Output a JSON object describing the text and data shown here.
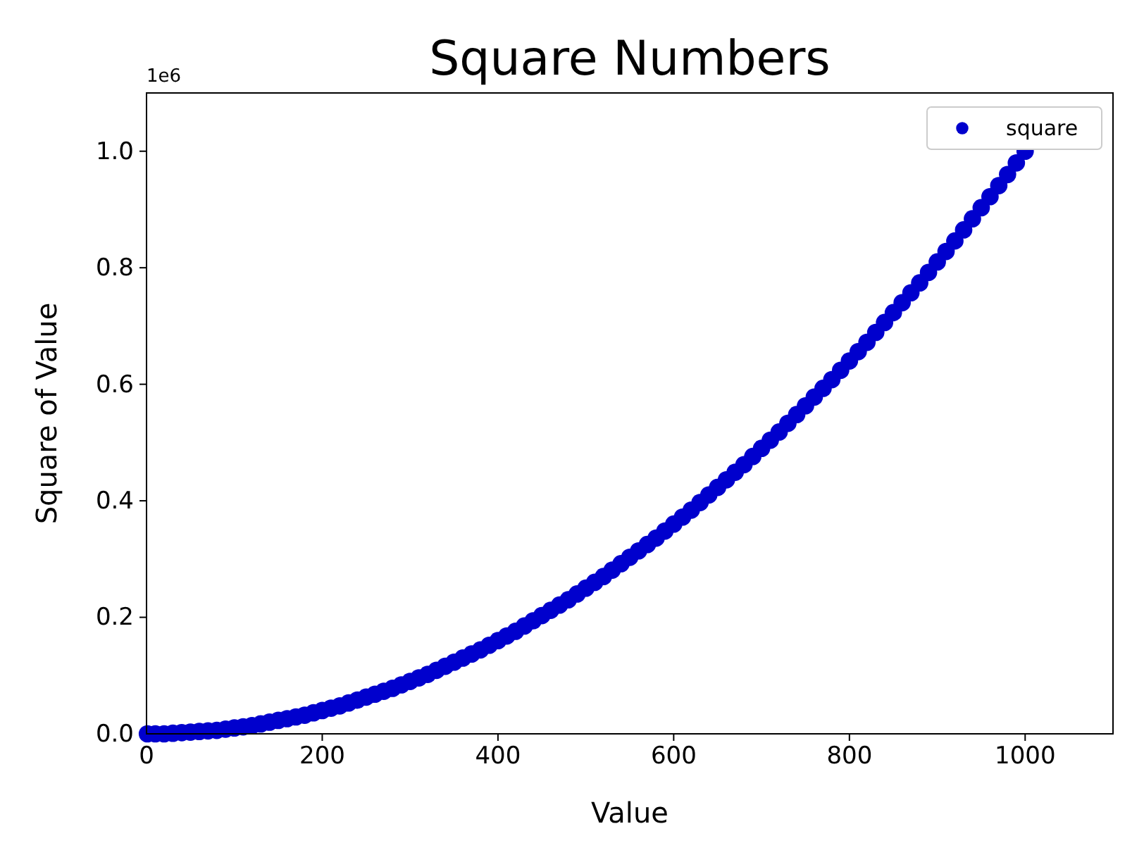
{
  "chart_data": {
    "type": "scatter",
    "title": "Square Numbers",
    "xlabel": "Value",
    "ylabel": "Square of Value",
    "annotations": [
      "1e6"
    ],
    "x": [
      1,
      10,
      20,
      30,
      40,
      50,
      60,
      70,
      80,
      90,
      100,
      110,
      120,
      130,
      140,
      150,
      160,
      170,
      180,
      190,
      200,
      210,
      220,
      230,
      240,
      250,
      260,
      270,
      280,
      290,
      300,
      310,
      320,
      330,
      340,
      350,
      360,
      370,
      380,
      390,
      400,
      410,
      420,
      430,
      440,
      450,
      460,
      470,
      480,
      490,
      500,
      510,
      520,
      530,
      540,
      550,
      560,
      570,
      580,
      590,
      600,
      610,
      620,
      630,
      640,
      650,
      660,
      670,
      680,
      690,
      700,
      710,
      720,
      730,
      740,
      750,
      760,
      770,
      780,
      790,
      800,
      810,
      820,
      830,
      840,
      850,
      860,
      870,
      880,
      890,
      900,
      910,
      920,
      930,
      940,
      950,
      960,
      970,
      980,
      990,
      1000
    ],
    "series": [
      {
        "name": "square",
        "color": "#0000cd",
        "values": [
          0,
          0,
          0,
          0.001,
          0.002,
          0.003,
          0.004,
          0.005,
          0.006,
          0.008,
          0.01,
          0.012,
          0.014,
          0.017,
          0.02,
          0.023,
          0.026,
          0.029,
          0.032,
          0.036,
          0.04,
          0.044,
          0.048,
          0.053,
          0.058,
          0.063,
          0.068,
          0.073,
          0.078,
          0.084,
          0.09,
          0.096,
          0.102,
          0.109,
          0.116,
          0.123,
          0.13,
          0.137,
          0.144,
          0.152,
          0.16,
          0.168,
          0.176,
          0.185,
          0.194,
          0.203,
          0.212,
          0.221,
          0.23,
          0.24,
          0.25,
          0.26,
          0.27,
          0.281,
          0.292,
          0.303,
          0.314,
          0.325,
          0.336,
          0.348,
          0.36,
          0.372,
          0.384,
          0.397,
          0.41,
          0.423,
          0.436,
          0.449,
          0.462,
          0.476,
          0.49,
          0.504,
          0.518,
          0.533,
          0.548,
          0.563,
          0.578,
          0.593,
          0.608,
          0.624,
          0.64,
          0.656,
          0.672,
          0.689,
          0.706,
          0.723,
          0.74,
          0.757,
          0.774,
          0.792,
          0.81,
          0.828,
          0.846,
          0.865,
          0.884,
          0.903,
          0.922,
          0.941,
          0.96,
          0.98,
          1
        ]
      }
    ],
    "xlim": [
      0,
      1100
    ],
    "xticks": [
      0,
      200,
      400,
      600,
      800,
      1000
    ],
    "ylim": [
      0,
      1.1
    ],
    "yticks": [
      {
        "value": 0,
        "label": "0.0"
      },
      0.2,
      0.4,
      0.6,
      0.8,
      {
        "value": 1,
        "label": "1.0"
      }
    ],
    "marker": "circle",
    "legend": "top right",
    "grid": false
  }
}
